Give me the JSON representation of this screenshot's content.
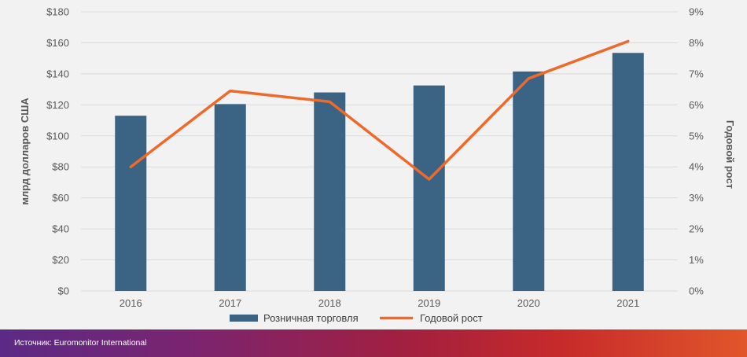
{
  "chart_data": {
    "type": "bar",
    "categories": [
      "2016",
      "2017",
      "2018",
      "2019",
      "2020",
      "2021"
    ],
    "series": [
      {
        "name": "Розничная торговля",
        "type": "bar",
        "axis": "left",
        "color": "#3a6384",
        "values": [
          113,
          120.5,
          128,
          132.5,
          141.5,
          153.5
        ]
      },
      {
        "name": "Годовой рост",
        "type": "line",
        "axis": "right",
        "color": "#ee6a2a",
        "values": [
          4.0,
          6.45,
          6.1,
          3.6,
          6.85,
          8.05
        ]
      }
    ],
    "ylabel": "млрд долларов США",
    "ylim": [
      0,
      180
    ],
    "ytick_values": [
      0,
      20,
      40,
      60,
      80,
      100,
      120,
      140,
      160,
      180
    ],
    "yticks": [
      "$0",
      "$20",
      "$40",
      "$60",
      "$80",
      "$100",
      "$120",
      "$140",
      "$160",
      "$180"
    ],
    "y2label": "Годовой рост",
    "y2lim": [
      0,
      9
    ],
    "y2tick_values": [
      0,
      1,
      2,
      3,
      4,
      5,
      6,
      7,
      8,
      9
    ],
    "y2ticks": [
      "0%",
      "1%",
      "2%",
      "3%",
      "4%",
      "5%",
      "6%",
      "7%",
      "8%",
      "9%"
    ],
    "grid": true,
    "legend_position": "bottom"
  },
  "footer": {
    "source": "Источник: Euromonitor International"
  }
}
